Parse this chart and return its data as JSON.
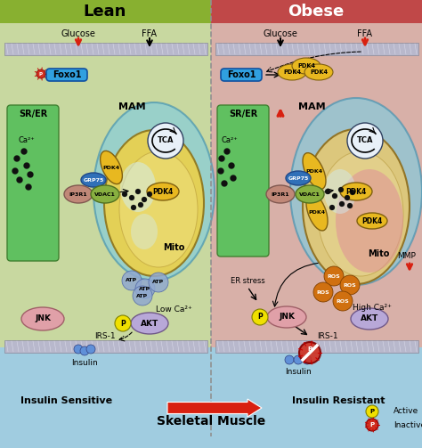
{
  "title_lean": "Lean",
  "title_obese": "Obese",
  "bottom_title": "Skeletal Muscle",
  "lean_subtitle": "Insulin Sensitive",
  "obese_subtitle": "Insulin Resistant",
  "bg_lean": "#c8d8a0",
  "bg_obese": "#d8b0a8",
  "bg_bottom": "#a0cce0",
  "header_lean": "#88b030",
  "header_obese": "#c04848",
  "membrane_color": "#c8c8d8",
  "er_color": "#60c060",
  "mam_color": "#70c8e0",
  "mito_color": "#e8d060",
  "pdk4_color": "#e8b820",
  "grp75_color": "#3070b8",
  "ip3r1_color": "#c08878",
  "vdac1_color": "#88b040",
  "foxo1_color": "#30a0e0",
  "jnk_color": "#e0a0a8",
  "akt_color": "#b8a8d8",
  "atp_color": "#90a8d0",
  "ros_color": "#d07010",
  "p_active_color": "#f0e000",
  "p_inactive_color": "#d03020",
  "arrow_red": "#d82010",
  "tca_bg": "#e8f0f8"
}
